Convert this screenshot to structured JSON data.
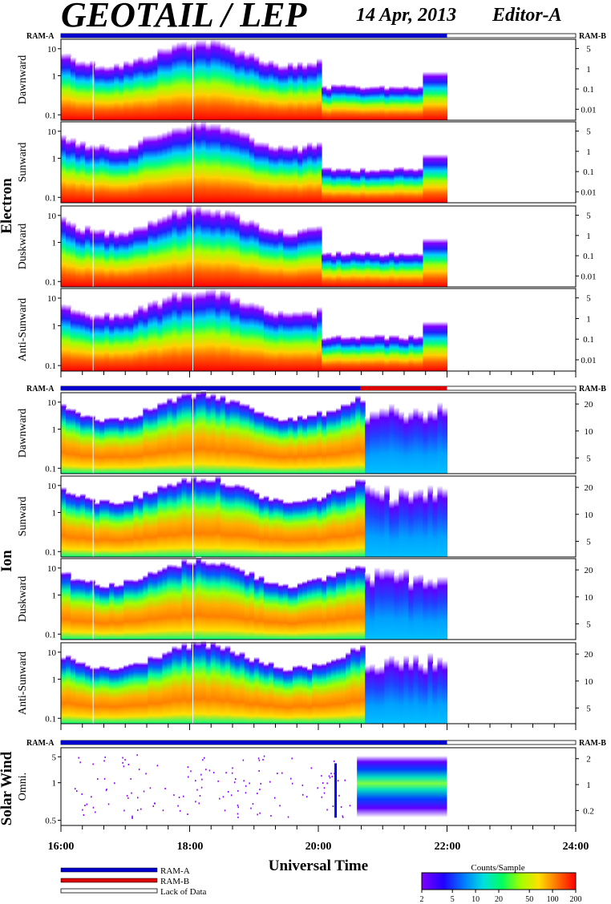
{
  "header": {
    "title": "GEOTAIL / LEP",
    "date": "14 Apr, 2013",
    "editor": "Editor-A"
  },
  "ram_label_left": "RAM-A",
  "ram_label_right": "RAM-B",
  "groups": [
    {
      "name": "Electron",
      "panels": [
        "Dawnward",
        "Sunward",
        "Duskward",
        "Anti-Sunward"
      ]
    },
    {
      "name": "Ion",
      "panels": [
        "Dawnward",
        "Sunward",
        "Duskward",
        "Anti-Sunward"
      ]
    },
    {
      "name": "Solar Wind",
      "panels": [
        "Omni."
      ]
    }
  ],
  "axes": {
    "left_ticks_electron": [
      "10",
      "1",
      "0.1"
    ],
    "right_ticks_electron": [
      "5",
      "1",
      "0.1",
      "0.01"
    ],
    "left_ticks_ion": [
      "10",
      "1",
      "0.1"
    ],
    "right_ticks_ion": [
      "20",
      "10",
      "5"
    ],
    "left_ticks_sw": [
      "5",
      "1",
      "0.5"
    ],
    "right_ticks_sw": [
      "2",
      "1",
      "0.2"
    ],
    "time_labels": [
      "16:00",
      "18:00",
      "20:00",
      "22:00",
      "24:00"
    ],
    "xlabel": "Universal Time"
  },
  "legend": {
    "items": [
      {
        "label": "RAM-A",
        "color": "#0000cc"
      },
      {
        "label": "RAM-B",
        "color": "#dd0000"
      },
      {
        "label": "Lack of Data",
        "color": "#ffffff"
      }
    ]
  },
  "colorbar": {
    "title": "Counts/Sample",
    "ticks": [
      "2",
      "5",
      "10",
      "20",
      "50",
      "100",
      "200"
    ],
    "colors": [
      "#8000ff",
      "#3000ff",
      "#0040ff",
      "#00c0ff",
      "#00ff80",
      "#80ff00",
      "#ffff00",
      "#ff8000",
      "#ff0000"
    ]
  },
  "chart_data": {
    "type": "heatmap",
    "title": "GEOTAIL / LEP",
    "xlabel": "Universal Time",
    "x_range": [
      "16:00",
      "24:00"
    ],
    "data_end": "22:00",
    "colorbar_range": [
      2,
      200
    ],
    "ram_periods": [
      {
        "panel_group": "Electron",
        "RAM-A": [
          "16:00",
          "22:00"
        ]
      },
      {
        "panel_group": "Ion",
        "RAM-A": [
          "16:00",
          "20:40"
        ],
        "RAM-B": [
          "20:40",
          "22:00"
        ]
      },
      {
        "panel_group": "Solar Wind",
        "RAM-A": [
          "16:00",
          "22:00"
        ]
      }
    ]
  }
}
